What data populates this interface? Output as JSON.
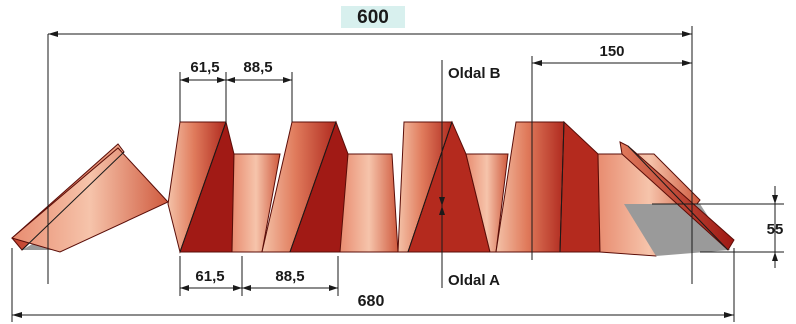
{
  "colors": {
    "top_highlight": "#d8f0ee",
    "panel_light": "#f2b59a",
    "panel_mid": "#d35a3b",
    "panel_dark": "#a11a15",
    "underside": "#9a9a9a",
    "line": "#1a1a1a"
  },
  "dimensions": {
    "overall_cover": "600",
    "total_width": "680",
    "top_flange_1": "61,5",
    "top_gap_1": "88,5",
    "bottom_flange_1": "61,5",
    "bottom_gap_1": "88,5",
    "pitch": "150",
    "height": "55"
  },
  "sides": {
    "side_b": "Oldal B",
    "side_a": "Oldal A"
  }
}
